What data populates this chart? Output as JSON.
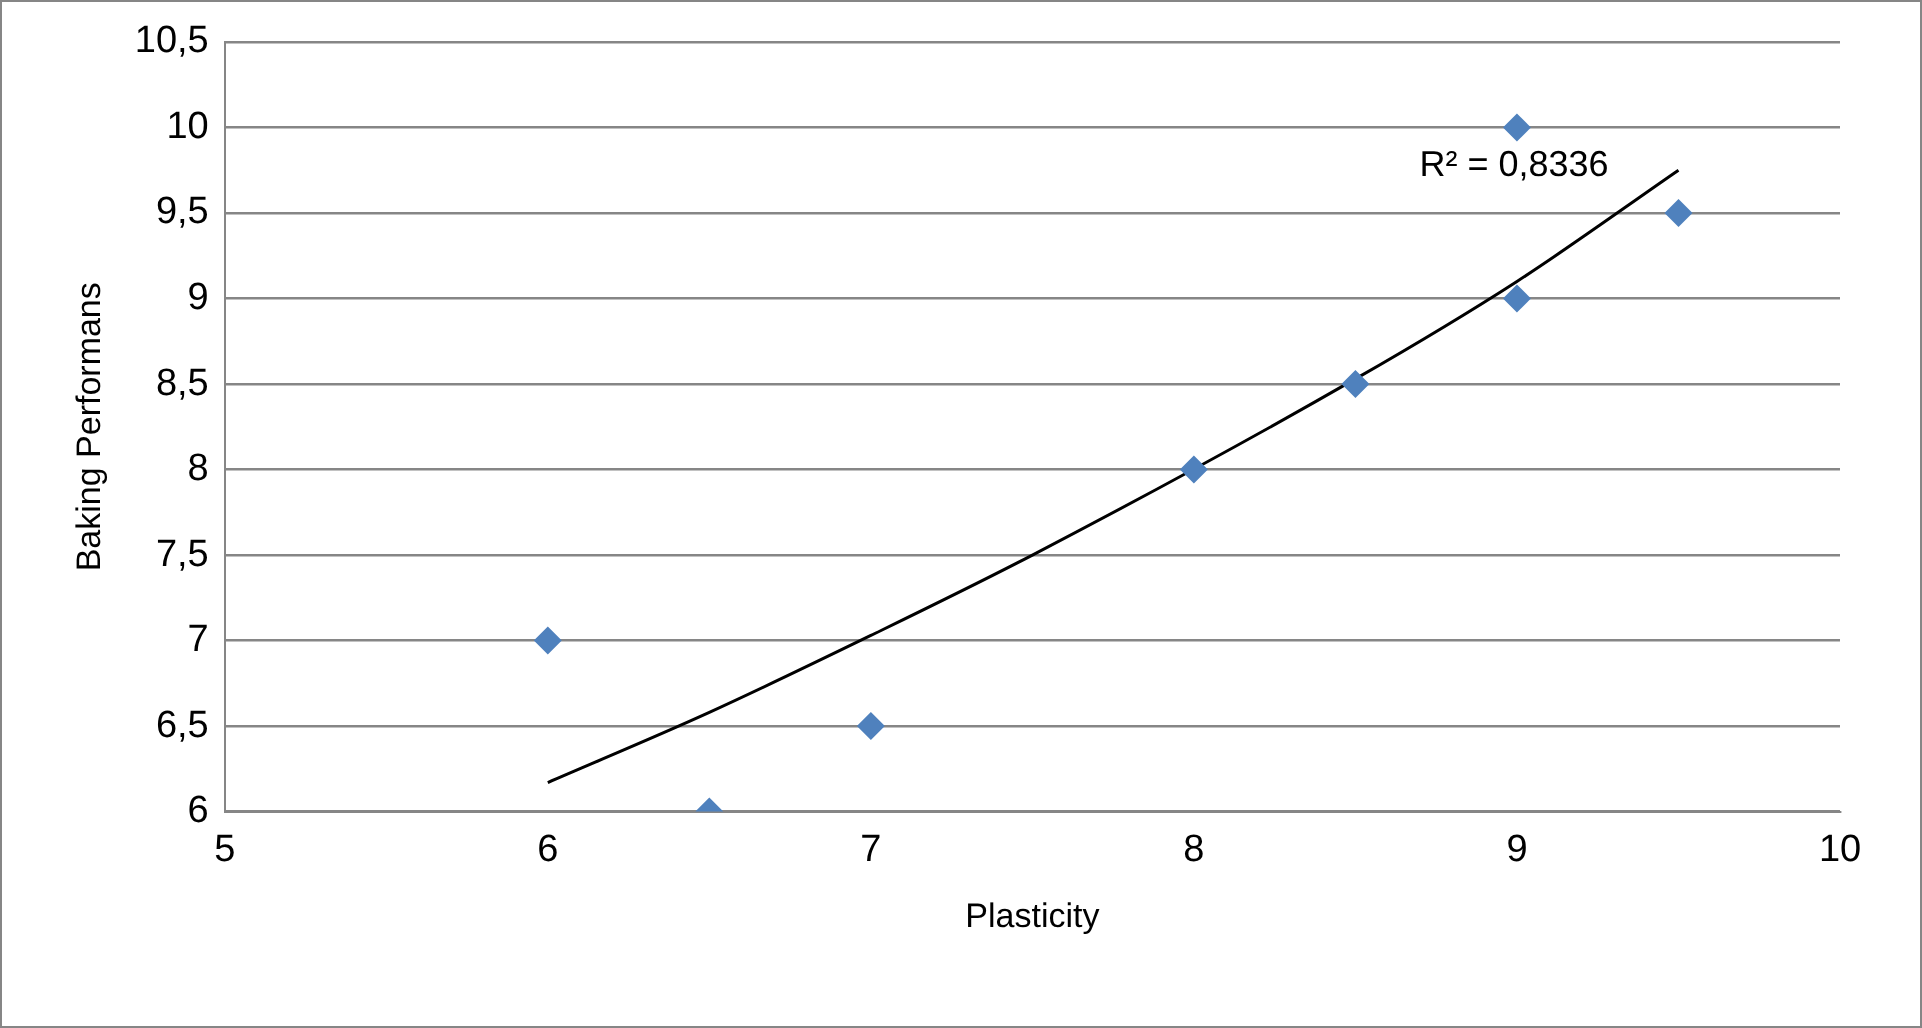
{
  "chart_data": {
    "type": "scatter",
    "xlabel": "Plasticity",
    "ylabel": "Baking Performans",
    "xlim": [
      5,
      10
    ],
    "xticks": [
      5,
      6,
      7,
      8,
      9,
      10
    ],
    "ylim": [
      6,
      10.5
    ],
    "yticks": [
      6,
      {
        "value": 6.5,
        "label": "6,5"
      },
      7,
      {
        "value": 7.5,
        "label": "7,5"
      },
      8,
      {
        "value": 8.5,
        "label": "8,5"
      },
      9,
      {
        "value": 9.5,
        "label": "9,5"
      },
      10,
      {
        "value": 10.5,
        "label": "10,5"
      }
    ],
    "grid": "y",
    "legend": false,
    "marker": "diamond",
    "series": [
      {
        "type": "scatter",
        "color": "#4f81bd",
        "x": [
          6,
          6.5,
          7,
          8,
          8.5,
          9,
          9,
          9.5
        ],
        "values": [
          7,
          6,
          6.5,
          8,
          8.5,
          9,
          10,
          9.5
        ]
      },
      {
        "type": "line",
        "color": "#000000",
        "marker": "none",
        "x": [
          6,
          6.5,
          7,
          7.5,
          8.5,
          9,
          9.5
        ],
        "values": [
          6.17,
          6.58,
          7.03,
          7.5,
          8.53,
          9.1,
          9.75
        ]
      }
    ],
    "annotations": [
      "R² = 0,8336"
    ]
  }
}
